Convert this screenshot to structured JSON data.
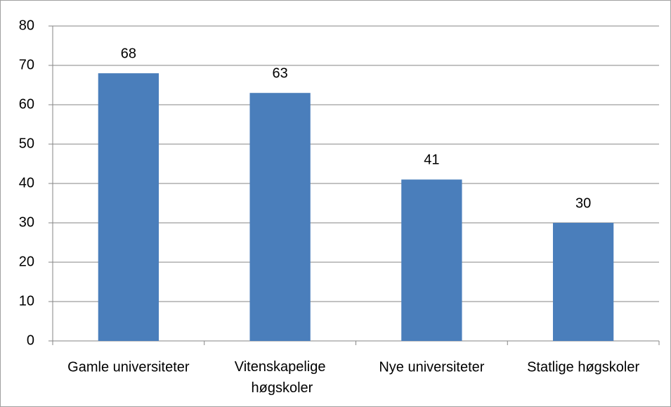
{
  "chart_data": {
    "type": "bar",
    "categories": [
      "Gamle universiteter",
      "Vitenskapelige høgskoler",
      "Nye universiteter",
      "Statlige høgskoler"
    ],
    "values": [
      68,
      63,
      41,
      30
    ],
    "color": "#4a7ebb",
    "ylim": [
      0,
      80
    ],
    "yticks": [
      0,
      10,
      20,
      30,
      40,
      50,
      60,
      70,
      80
    ],
    "grid": true,
    "data_labels": true
  }
}
